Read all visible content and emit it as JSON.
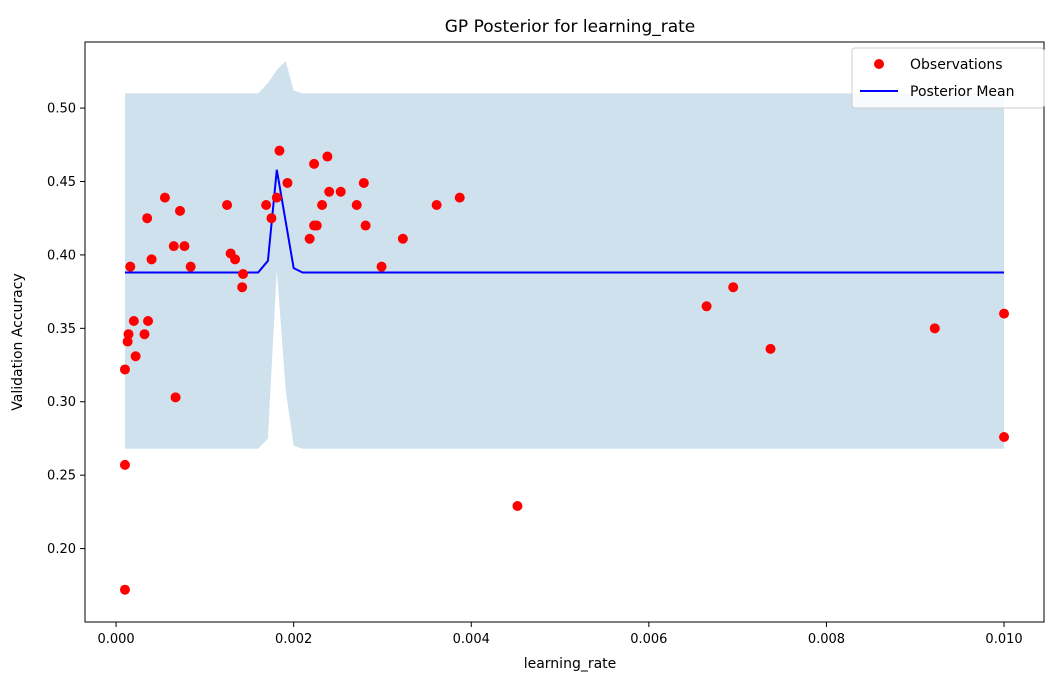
{
  "chart_data": {
    "type": "scatter",
    "title": "GP Posterior for learning_rate",
    "xlabel": "learning_rate",
    "ylabel": "Validation Accuracy",
    "xlim": [
      -0.00035,
      0.01045
    ],
    "ylim": [
      0.15,
      0.545
    ],
    "xticks": [
      0.0,
      0.002,
      0.004,
      0.006,
      0.008,
      0.01
    ],
    "xtick_labels": [
      "0.000",
      "0.002",
      "0.004",
      "0.006",
      "0.008",
      "0.010"
    ],
    "yticks": [
      0.2,
      0.25,
      0.3,
      0.35,
      0.4,
      0.45,
      0.5
    ],
    "ytick_labels": [
      "0.20",
      "0.25",
      "0.30",
      "0.35",
      "0.40",
      "0.45",
      "0.50"
    ],
    "grid": false,
    "legend_position": "top-right",
    "colors": {
      "observations": "#ff0000",
      "mean": "#0000ff",
      "band": "#d0e1ee"
    },
    "series": [
      {
        "name": "Observations",
        "kind": "scatter",
        "points": [
          [
            0.0001,
            0.322
          ],
          [
            0.0001,
            0.257
          ],
          [
            0.0001,
            0.172
          ],
          [
            0.00013,
            0.341
          ],
          [
            0.00014,
            0.346
          ],
          [
            0.00016,
            0.392
          ],
          [
            0.0002,
            0.355
          ],
          [
            0.00022,
            0.331
          ],
          [
            0.00032,
            0.346
          ],
          [
            0.00035,
            0.425
          ],
          [
            0.00036,
            0.355
          ],
          [
            0.0004,
            0.397
          ],
          [
            0.00055,
            0.439
          ],
          [
            0.00065,
            0.406
          ],
          [
            0.00067,
            0.303
          ],
          [
            0.00072,
            0.43
          ],
          [
            0.00077,
            0.406
          ],
          [
            0.00084,
            0.392
          ],
          [
            0.00125,
            0.434
          ],
          [
            0.00129,
            0.401
          ],
          [
            0.00134,
            0.397
          ],
          [
            0.00142,
            0.378
          ],
          [
            0.00143,
            0.387
          ],
          [
            0.00169,
            0.434
          ],
          [
            0.00175,
            0.425
          ],
          [
            0.00181,
            0.439
          ],
          [
            0.00184,
            0.471
          ],
          [
            0.00193,
            0.449
          ],
          [
            0.00218,
            0.411
          ],
          [
            0.00223,
            0.462
          ],
          [
            0.00223,
            0.42
          ],
          [
            0.00226,
            0.42
          ],
          [
            0.00232,
            0.434
          ],
          [
            0.00238,
            0.467
          ],
          [
            0.0024,
            0.443
          ],
          [
            0.00253,
            0.443
          ],
          [
            0.00271,
            0.434
          ],
          [
            0.00279,
            0.449
          ],
          [
            0.00281,
            0.42
          ],
          [
            0.00299,
            0.392
          ],
          [
            0.00323,
            0.411
          ],
          [
            0.00361,
            0.434
          ],
          [
            0.00387,
            0.439
          ],
          [
            0.00452,
            0.229
          ],
          [
            0.00665,
            0.365
          ],
          [
            0.00695,
            0.378
          ],
          [
            0.00737,
            0.336
          ],
          [
            0.00922,
            0.35
          ],
          [
            0.01,
            0.36
          ],
          [
            0.01,
            0.276
          ]
        ]
      },
      {
        "name": "Posterior Mean",
        "kind": "line",
        "points": [
          [
            0.0001,
            0.388
          ],
          [
            0.0016,
            0.388
          ],
          [
            0.00171,
            0.396
          ],
          [
            0.00181,
            0.458
          ],
          [
            0.002,
            0.391
          ],
          [
            0.0021,
            0.388
          ],
          [
            0.01,
            0.388
          ]
        ]
      },
      {
        "kind": "band",
        "upper": [
          [
            0.0001,
            0.51
          ],
          [
            0.0016,
            0.51
          ],
          [
            0.00171,
            0.517
          ],
          [
            0.00181,
            0.526
          ],
          [
            0.00191,
            0.532
          ],
          [
            0.002,
            0.512
          ],
          [
            0.0021,
            0.51
          ],
          [
            0.01,
            0.51
          ]
        ],
        "lower": [
          [
            0.0001,
            0.268
          ],
          [
            0.0016,
            0.268
          ],
          [
            0.00171,
            0.275
          ],
          [
            0.00181,
            0.39
          ],
          [
            0.00191,
            0.308
          ],
          [
            0.002,
            0.27
          ],
          [
            0.0021,
            0.268
          ],
          [
            0.01,
            0.268
          ]
        ]
      }
    ]
  }
}
